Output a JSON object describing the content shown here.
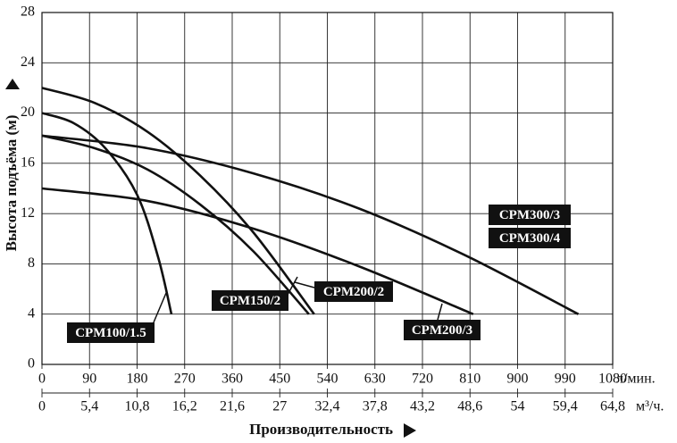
{
  "chart_data": {
    "type": "line",
    "x_label": "Производительность",
    "y_label": "Высота подъёма (м)",
    "x_unit": "л/мин.",
    "x2_unit": "м³/ч.",
    "xlim": [
      0,
      1080
    ],
    "xticks": [
      0,
      90,
      180,
      270,
      360,
      450,
      540,
      630,
      720,
      810,
      900,
      990,
      1080
    ],
    "x2lim": [
      0,
      64.8
    ],
    "x2ticks": [
      0,
      {
        "value": 5.4,
        "label": "5,4"
      },
      {
        "value": 10.8,
        "label": "10,8"
      },
      {
        "value": 16.2,
        "label": "16,2"
      },
      {
        "value": 21.6,
        "label": "21,6"
      },
      27,
      {
        "value": 32.4,
        "label": "32,4"
      },
      {
        "value": 37.8,
        "label": "37,8"
      },
      {
        "value": 43.2,
        "label": "43,2"
      },
      {
        "value": 48.6,
        "label": "48,6"
      },
      54,
      {
        "value": 59.4,
        "label": "59,4"
      },
      {
        "value": 64.8,
        "label": "64,8"
      }
    ],
    "ylim": [
      0,
      28
    ],
    "yticks": [
      0,
      4,
      8,
      12,
      16,
      20,
      24,
      28
    ],
    "grid": true,
    "series": [
      {
        "name": "CPM100/1.5",
        "color": "#111111",
        "x": [
          0,
          60,
          120,
          180,
          220,
          245
        ],
        "values": [
          20,
          19.2,
          17.2,
          13.5,
          8.5,
          4
        ]
      },
      {
        "name": "CPM150/2",
        "color": "#111111",
        "x": [
          0,
          100,
          200,
          300,
          400,
          515
        ],
        "values": [
          22,
          20.8,
          18.5,
          15,
          10.5,
          4
        ]
      },
      {
        "name": "CPM200/2",
        "color": "#111111",
        "x": [
          0,
          100,
          200,
          300,
          400,
          505
        ],
        "values": [
          18.2,
          17.2,
          15.5,
          12.7,
          9,
          4
        ]
      },
      {
        "name": "CPM200/3",
        "color": "#111111",
        "x": [
          0,
          200,
          400,
          600,
          816
        ],
        "values": [
          14,
          13,
          10.8,
          7.8,
          4
        ]
      },
      {
        "name": "CPM300/3",
        "alt_name": "CPM300/4",
        "color": "#111111",
        "x": [
          0,
          200,
          400,
          600,
          800,
          1015
        ],
        "values": [
          18.2,
          17.2,
          15.2,
          12.4,
          8.7,
          4
        ]
      }
    ]
  }
}
